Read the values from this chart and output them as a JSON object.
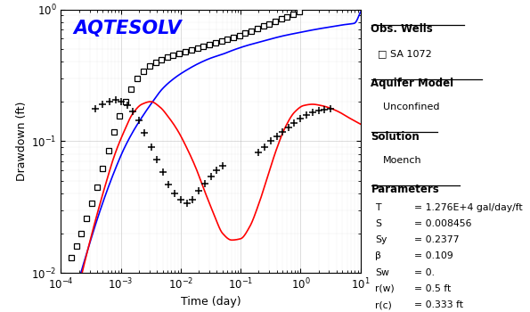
{
  "title_text": "AQTESOLV",
  "title_color": "#0000FF",
  "xlabel": "Time (day)",
  "ylabel": "Drawdown (ft)",
  "bg_color": "#FFFFFF",
  "square_data_x": [
    0.00015,
    0.00018,
    0.00022,
    0.00027,
    0.00033,
    0.0004,
    0.0005,
    0.00062,
    0.00078,
    0.00095,
    0.0012,
    0.0015,
    0.0019,
    0.0024,
    0.003,
    0.0038,
    0.0048,
    0.006,
    0.0075,
    0.0095,
    0.012,
    0.015,
    0.019,
    0.024,
    0.03,
    0.038,
    0.048,
    0.06,
    0.075,
    0.095,
    0.12,
    0.15,
    0.19,
    0.24,
    0.3,
    0.38,
    0.48,
    0.6,
    0.75,
    0.95
  ],
  "square_data_y": [
    0.013,
    0.016,
    0.02,
    0.026,
    0.034,
    0.045,
    0.062,
    0.085,
    0.118,
    0.155,
    0.2,
    0.25,
    0.3,
    0.34,
    0.37,
    0.395,
    0.415,
    0.432,
    0.447,
    0.46,
    0.475,
    0.492,
    0.508,
    0.523,
    0.54,
    0.556,
    0.572,
    0.59,
    0.61,
    0.632,
    0.658,
    0.686,
    0.715,
    0.746,
    0.778,
    0.812,
    0.846,
    0.88,
    0.916,
    0.955
  ],
  "plus_data_x": [
    0.00038,
    0.0005,
    0.00065,
    0.00082,
    0.001,
    0.0013,
    0.0016,
    0.002,
    0.0025,
    0.0032,
    0.004,
    0.005,
    0.0063,
    0.0079,
    0.01,
    0.0126,
    0.0158,
    0.02,
    0.025,
    0.032,
    0.04,
    0.05,
    0.2,
    0.25,
    0.32,
    0.4,
    0.5,
    0.63,
    0.79,
    1.0,
    1.26,
    1.58,
    2.0,
    2.5,
    3.2
  ],
  "plus_data_y": [
    0.175,
    0.19,
    0.2,
    0.205,
    0.2,
    0.188,
    0.168,
    0.143,
    0.115,
    0.09,
    0.072,
    0.058,
    0.047,
    0.04,
    0.036,
    0.034,
    0.036,
    0.042,
    0.048,
    0.054,
    0.06,
    0.065,
    0.082,
    0.09,
    0.1,
    0.108,
    0.118,
    0.128,
    0.138,
    0.148,
    0.158,
    0.165,
    0.17,
    0.174,
    0.177
  ],
  "blue_curve_logx": [
    -4.0,
    -3.85,
    -3.7,
    -3.55,
    -3.4,
    -3.25,
    -3.1,
    -2.95,
    -2.8,
    -2.65,
    -2.5,
    -2.3,
    -2.1,
    -1.9,
    -1.7,
    -1.5,
    -1.3,
    -1.1,
    -0.9,
    -0.7,
    -0.5,
    -0.3,
    -0.1,
    0.1,
    0.3,
    0.5,
    0.7,
    0.9,
    1.0
  ],
  "blue_curve_logy": [
    -2.5,
    -2.3,
    -2.05,
    -1.82,
    -1.6,
    -1.4,
    -1.22,
    -1.06,
    -0.93,
    -0.82,
    -0.72,
    -0.6,
    -0.52,
    -0.46,
    -0.41,
    -0.37,
    -0.34,
    -0.305,
    -0.275,
    -0.25,
    -0.225,
    -0.202,
    -0.183,
    -0.165,
    -0.148,
    -0.133,
    -0.118,
    -0.105,
    -0.02
  ],
  "red_curve_logx": [
    -4.0,
    -3.85,
    -3.7,
    -3.55,
    -3.4,
    -3.25,
    -3.1,
    -2.95,
    -2.8,
    -2.65,
    -2.5,
    -2.35,
    -2.2,
    -2.05,
    -1.9,
    -1.75,
    -1.6,
    -1.45,
    -1.3,
    -1.15,
    -1.0,
    -0.85,
    -0.7,
    -0.55,
    -0.4,
    -0.25,
    -0.1,
    0.05,
    0.2,
    0.35,
    0.5,
    0.65,
    0.8,
    1.0
  ],
  "red_curve_logy": [
    -2.7,
    -2.4,
    -2.1,
    -1.82,
    -1.56,
    -1.32,
    -1.1,
    -0.93,
    -0.79,
    -0.72,
    -0.7,
    -0.74,
    -0.82,
    -0.92,
    -1.05,
    -1.2,
    -1.38,
    -1.55,
    -1.7,
    -1.75,
    -1.74,
    -1.65,
    -1.48,
    -1.27,
    -1.06,
    -0.89,
    -0.78,
    -0.73,
    -0.72,
    -0.73,
    -0.75,
    -0.78,
    -0.82,
    -0.87
  ]
}
